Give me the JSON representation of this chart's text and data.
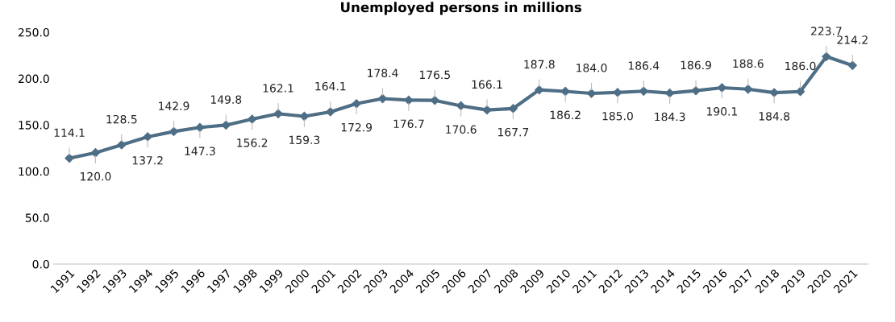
{
  "chart_data": {
    "type": "line",
    "title": "Unemployed persons in millions",
    "categories": [
      "1991",
      "1992",
      "1993",
      "1994",
      "1995",
      "1996",
      "1997",
      "1998",
      "1999",
      "2000",
      "2001",
      "2002",
      "2003",
      "2004",
      "2005",
      "2006",
      "2007",
      "2008",
      "2009",
      "2010",
      "2011",
      "2012",
      "2013",
      "2014",
      "2015",
      "2016",
      "2017",
      "2018",
      "2019",
      "2020",
      "2021"
    ],
    "series": [
      {
        "color": "#4e6e86",
        "values": [
          114.1,
          120.0,
          128.5,
          137.2,
          142.9,
          147.3,
          149.8,
          156.2,
          162.1,
          159.3,
          164.1,
          172.9,
          178.4,
          176.7,
          176.5,
          170.6,
          166.1,
          167.7,
          187.8,
          186.2,
          184.0,
          185.0,
          186.4,
          184.3,
          186.9,
          190.1,
          188.6,
          184.8,
          186.0,
          223.7,
          214.2
        ],
        "value_labels": [
          "114.1",
          "120.0",
          "128.5",
          "137.2",
          "142.9",
          "147.3",
          "149.8",
          "156.2",
          "162.1",
          "159.3",
          "164.1",
          "172.9",
          "178.4",
          "176.7",
          "176.5",
          "170.6",
          "166.1",
          "167.7",
          "187.8",
          "186.2",
          "184.0",
          "185.0",
          "186.4",
          "184.3",
          "186.9",
          "190.1",
          "188.6",
          "184.8",
          "186.0",
          "223.7",
          "214.2"
        ]
      }
    ],
    "ylim": [
      0,
      250
    ],
    "yticks": [
      {
        "value": 0,
        "label": "0.0"
      },
      {
        "value": 50,
        "label": "50.0"
      },
      {
        "value": 100,
        "label": "100.0"
      },
      {
        "value": 150,
        "label": "150.0"
      },
      {
        "value": 200,
        "label": "200.0"
      },
      {
        "value": 250,
        "label": "250.0"
      }
    ],
    "grid": false,
    "legend": false,
    "marker": "diamond",
    "line_style": "solid"
  }
}
